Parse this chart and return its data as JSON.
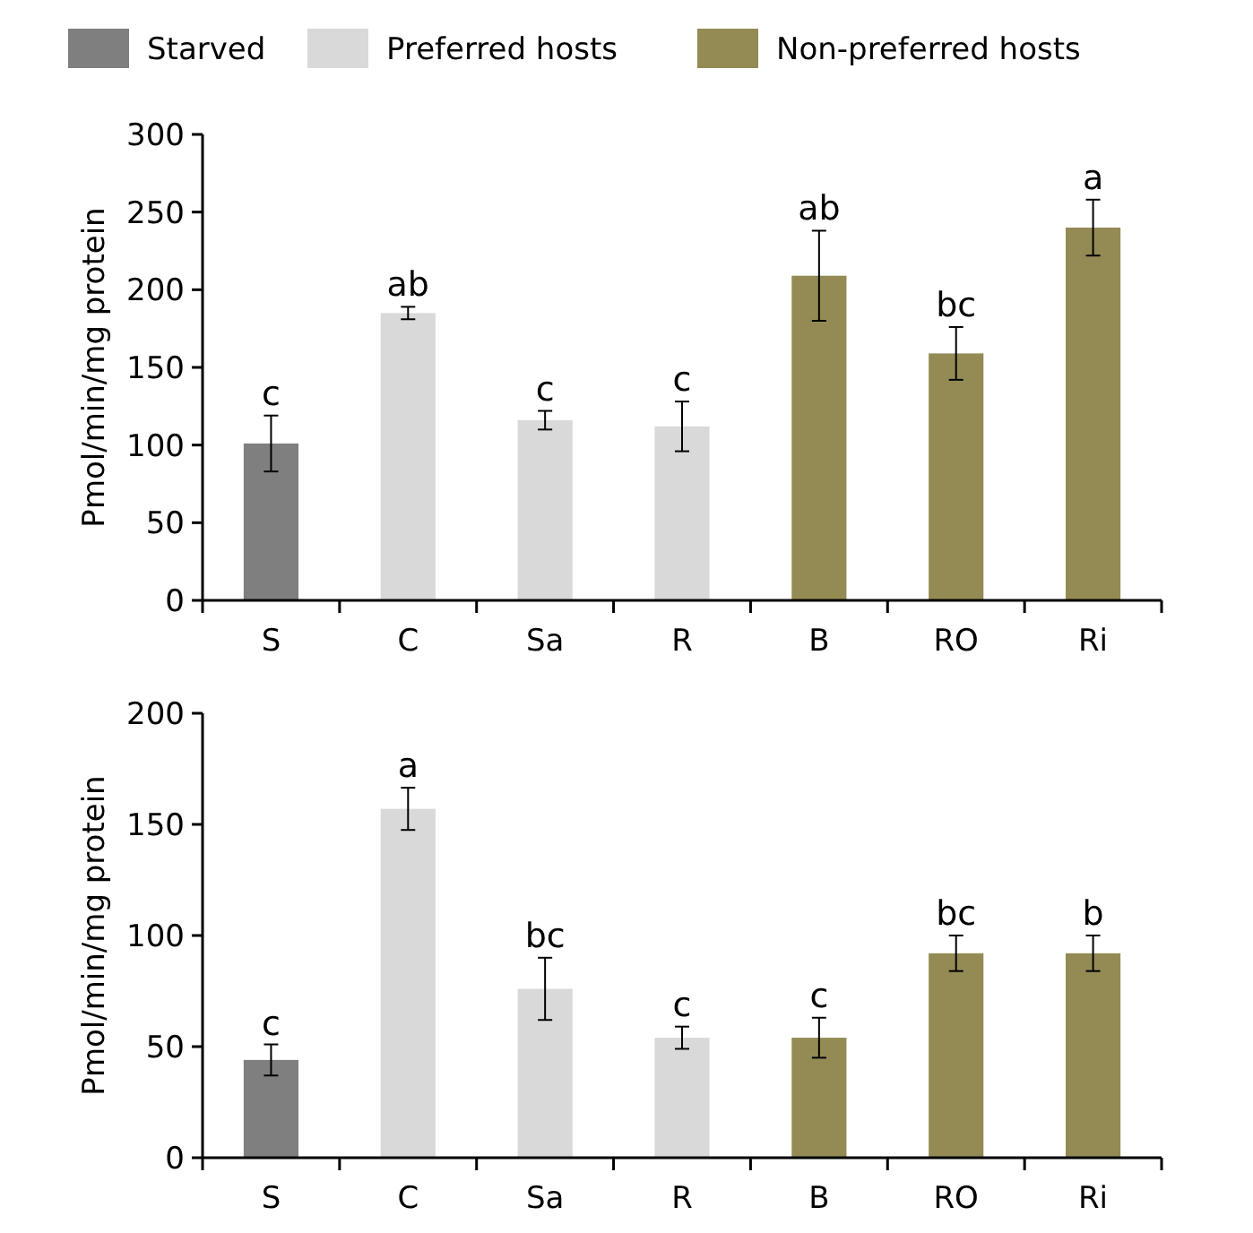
{
  "chart_data": [
    {
      "type": "bar",
      "ylabel": "Pmol/min/mg protein",
      "categories": [
        "S",
        "C",
        "Sa",
        "R",
        "B",
        "RO",
        "Ri"
      ],
      "legend": "top",
      "ylim": [
        0,
        300
      ],
      "yticks": [
        0,
        50,
        100,
        150,
        200,
        250,
        300
      ],
      "grid": false,
      "series": [
        {
          "name": "Starved",
          "color": "#7f7f7f",
          "values": [
            101,
            null,
            null,
            null,
            null,
            null,
            null
          ],
          "errors": [
            18,
            null,
            null,
            null,
            null,
            null,
            null
          ]
        },
        {
          "name": "Preferred hosts",
          "color": "#d9d9d9",
          "values": [
            null,
            185,
            116,
            112,
            null,
            null,
            null
          ],
          "errors": [
            null,
            4,
            6,
            16,
            null,
            null,
            null
          ]
        },
        {
          "name": "Non-preferred hosts",
          "color": "#948a54",
          "values": [
            null,
            null,
            null,
            null,
            209,
            159,
            240
          ],
          "errors": [
            null,
            null,
            null,
            null,
            29,
            17,
            18
          ]
        }
      ],
      "annotations": [
        {
          "text": "c",
          "x": "S",
          "y": 119
        },
        {
          "text": "ab",
          "x": "C",
          "y": 189
        },
        {
          "text": "c",
          "x": "Sa",
          "y": 122
        },
        {
          "text": "c",
          "x": "R",
          "y": 128
        },
        {
          "text": "ab",
          "x": "B",
          "y": 238
        },
        {
          "text": "bc",
          "x": "RO",
          "y": 176
        },
        {
          "text": "a",
          "x": "Ri",
          "y": 258
        }
      ]
    },
    {
      "type": "bar",
      "ylabel": "Pmol/min/mg protein",
      "categories": [
        "S",
        "C",
        "Sa",
        "R",
        "B",
        "RO",
        "Ri"
      ],
      "ylim": [
        0,
        200
      ],
      "yticks": [
        0,
        50,
        100,
        150,
        200
      ],
      "grid": false,
      "series": [
        {
          "color": "#7f7f7f",
          "values": [
            44,
            null,
            null,
            null,
            null,
            null,
            null
          ],
          "errors": [
            7,
            null,
            null,
            null,
            null,
            null,
            null
          ]
        },
        {
          "color": "#d9d9d9",
          "values": [
            null,
            157,
            76,
            54,
            null,
            null,
            null
          ],
          "errors": [
            null,
            9.5,
            14,
            5,
            null,
            null,
            null
          ]
        },
        {
          "color": "#948a54",
          "values": [
            null,
            null,
            null,
            null,
            54,
            92,
            92
          ],
          "errors": [
            null,
            null,
            null,
            null,
            9,
            8,
            8
          ]
        }
      ],
      "annotations": [
        {
          "text": "c",
          "x": "S",
          "y": 50.6
        },
        {
          "text": "a",
          "x": "C",
          "y": 166.5
        },
        {
          "text": "bc",
          "x": "Sa",
          "y": 90
        },
        {
          "text": "c",
          "x": "R",
          "y": 59
        },
        {
          "text": "c",
          "x": "B",
          "y": 63
        },
        {
          "text": "bc",
          "x": "RO",
          "y": 100
        },
        {
          "text": "b",
          "x": "Ri",
          "y": 100
        }
      ]
    }
  ]
}
